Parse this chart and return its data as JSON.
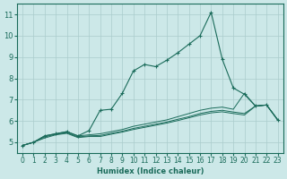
{
  "background_color": "#cce8e8",
  "grid_color": "#aacccc",
  "line_color": "#1a6b5a",
  "xlabel": "Humidex (Indice chaleur)",
  "xlim": [
    -0.5,
    23.5
  ],
  "ylim": [
    4.5,
    11.5
  ],
  "yticks": [
    5,
    6,
    7,
    8,
    9,
    10,
    11
  ],
  "xticks": [
    0,
    1,
    2,
    3,
    4,
    5,
    6,
    7,
    8,
    9,
    10,
    11,
    12,
    13,
    14,
    15,
    16,
    17,
    18,
    19,
    20,
    21,
    22,
    23
  ],
  "series": [
    {
      "x": [
        0,
        1,
        2,
        3,
        4,
        5,
        6,
        7,
        8,
        9,
        10,
        11,
        12,
        13,
        14,
        15,
        16,
        17,
        18,
        19,
        20,
        21,
        22,
        23
      ],
      "y": [
        4.85,
        5.0,
        5.3,
        5.4,
        5.5,
        5.3,
        5.55,
        6.5,
        6.55,
        7.3,
        8.35,
        8.65,
        8.55,
        8.85,
        9.2,
        9.6,
        10.0,
        11.1,
        8.9,
        7.55,
        7.25,
        6.7,
        6.75,
        6.05
      ],
      "marker": true
    },
    {
      "x": [
        0,
        1,
        2,
        3,
        4,
        5,
        6,
        7,
        8,
        9,
        10,
        11,
        12,
        13,
        14,
        15,
        16,
        17,
        18,
        19,
        20,
        21,
        22,
        23
      ],
      "y": [
        4.85,
        5.0,
        5.3,
        5.4,
        5.5,
        5.3,
        5.35,
        5.4,
        5.5,
        5.6,
        5.75,
        5.85,
        5.95,
        6.05,
        6.2,
        6.35,
        6.5,
        6.6,
        6.65,
        6.55,
        7.3,
        6.7,
        6.75,
        6.05
      ],
      "marker": false
    },
    {
      "x": [
        0,
        1,
        2,
        3,
        4,
        5,
        6,
        7,
        8,
        9,
        10,
        11,
        12,
        13,
        14,
        15,
        16,
        17,
        18,
        19,
        20,
        21,
        22,
        23
      ],
      "y": [
        4.85,
        5.0,
        5.25,
        5.38,
        5.45,
        5.25,
        5.3,
        5.32,
        5.42,
        5.52,
        5.65,
        5.75,
        5.85,
        5.95,
        6.08,
        6.2,
        6.35,
        6.45,
        6.5,
        6.42,
        6.35,
        6.7,
        6.75,
        6.05
      ],
      "marker": false
    },
    {
      "x": [
        0,
        1,
        2,
        3,
        4,
        5,
        6,
        7,
        8,
        9,
        10,
        11,
        12,
        13,
        14,
        15,
        16,
        17,
        18,
        19,
        20,
        21,
        22,
        23
      ],
      "y": [
        4.85,
        5.0,
        5.2,
        5.35,
        5.42,
        5.22,
        5.27,
        5.27,
        5.38,
        5.48,
        5.6,
        5.7,
        5.8,
        5.9,
        6.02,
        6.15,
        6.28,
        6.38,
        6.43,
        6.35,
        6.28,
        6.7,
        6.75,
        6.05
      ],
      "marker": false
    }
  ]
}
